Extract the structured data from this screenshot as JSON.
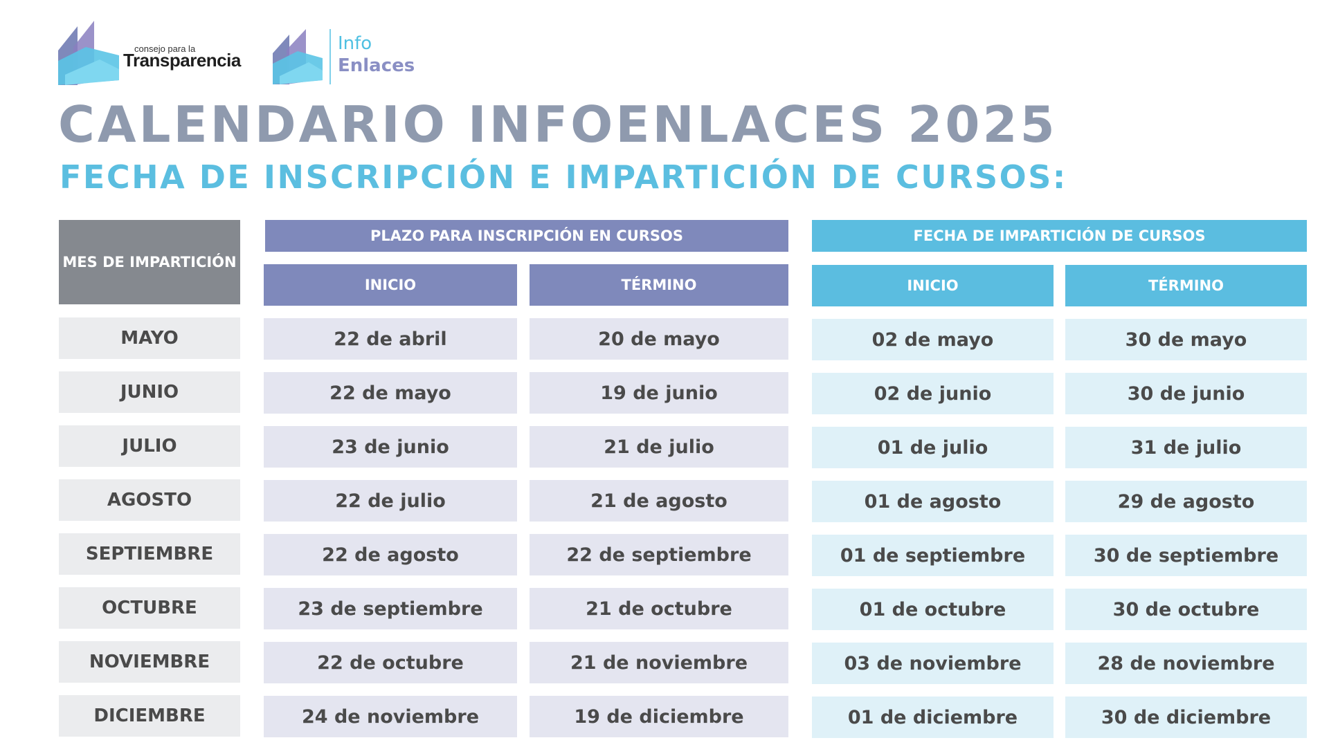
{
  "logos": {
    "consejo_small": "consejo para la",
    "consejo_big": "Transparencia",
    "info_line1": "Info",
    "info_line2": "Enlaces"
  },
  "title": "CALENDARIO INFOENLACES 2025",
  "subtitle": "FECHA DE INSCRIPCIÓN E IMPARTICIÓN DE CURSOS:",
  "colors": {
    "title": "#8f9aae",
    "subtitle": "#5bbee0",
    "month_header": "#85898f",
    "inscription_header": "#7f89bb",
    "imparticion_header": "#5bbde0"
  },
  "table": {
    "month_header": "MES DE IMPARTICIÓN",
    "group_inscripcion": "PLAZO PARA INSCRIPCIÓN EN CURSOS",
    "group_imparticion": "FECHA DE IMPARTICIÓN DE CURSOS",
    "sub_inicio": "INICIO",
    "sub_termino": "TÉRMINO",
    "rows": [
      {
        "month": "MAYO",
        "insc_inicio": "22 de abril",
        "insc_termino": "20 de mayo",
        "imp_inicio": "02 de mayo",
        "imp_termino": "30 de mayo"
      },
      {
        "month": "JUNIO",
        "insc_inicio": "22 de mayo",
        "insc_termino": "19 de junio",
        "imp_inicio": "02 de junio",
        "imp_termino": "30 de junio"
      },
      {
        "month": "JULIO",
        "insc_inicio": "23 de junio",
        "insc_termino": "21 de julio",
        "imp_inicio": "01 de julio",
        "imp_termino": "31 de julio"
      },
      {
        "month": "AGOSTO",
        "insc_inicio": "22 de julio",
        "insc_termino": "21 de agosto",
        "imp_inicio": "01 de agosto",
        "imp_termino": "29 de agosto"
      },
      {
        "month": "SEPTIEMBRE",
        "insc_inicio": "22 de agosto",
        "insc_termino": "22 de septiembre",
        "imp_inicio": "01 de septiembre",
        "imp_termino": "30 de septiembre"
      },
      {
        "month": "OCTUBRE",
        "insc_inicio": "23 de septiembre",
        "insc_termino": "21 de octubre",
        "imp_inicio": "01 de octubre",
        "imp_termino": "30 de octubre"
      },
      {
        "month": "NOVIEMBRE",
        "insc_inicio": "22 de octubre",
        "insc_termino": "21 de noviembre",
        "imp_inicio": "03  de noviembre",
        "imp_termino": "28 de noviembre"
      },
      {
        "month": "DICIEMBRE",
        "insc_inicio": "24 de noviembre",
        "insc_termino": "19 de diciembre",
        "imp_inicio": "01 de diciembre",
        "imp_termino": "30 de diciembre"
      }
    ]
  }
}
